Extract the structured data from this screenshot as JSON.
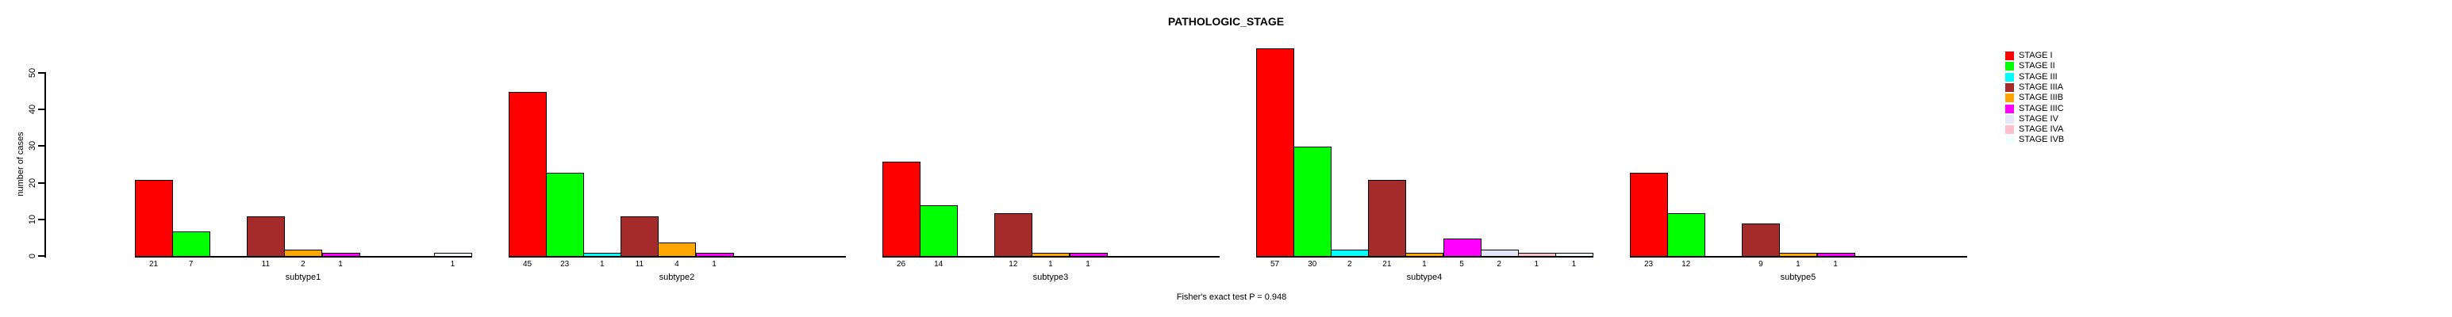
{
  "chart_data": {
    "type": "bar",
    "title": "PATHOLOGIC_STAGE",
    "ylabel": "number of cases",
    "annotation": "Fisher's exact test P = 0.948",
    "ylim": [
      0,
      50
    ],
    "yticks": [
      0,
      10,
      20,
      30,
      40,
      50
    ],
    "grid": false,
    "legend_position": "right-outside",
    "groups": [
      "subtype1",
      "subtype2",
      "subtype3",
      "subtype4",
      "subtype5"
    ],
    "series": [
      {
        "name": "STAGE I",
        "color": "#FF0000",
        "values": [
          21,
          45,
          26,
          57,
          23
        ]
      },
      {
        "name": "STAGE II",
        "color": "#00FF00",
        "values": [
          7,
          23,
          14,
          30,
          12
        ]
      },
      {
        "name": "STAGE III",
        "color": "#00FFFF",
        "values": [
          0,
          1,
          0,
          2,
          0
        ]
      },
      {
        "name": "STAGE IIIA",
        "color": "#A52A2A",
        "values": [
          11,
          11,
          12,
          21,
          9
        ]
      },
      {
        "name": "STAGE IIIB",
        "color": "#FFA500",
        "values": [
          2,
          4,
          1,
          1,
          1
        ]
      },
      {
        "name": "STAGE IIIC",
        "color": "#FF00FF",
        "values": [
          1,
          1,
          1,
          5,
          1
        ]
      },
      {
        "name": "STAGE IV",
        "color": "#E6E6FA",
        "values": [
          0,
          0,
          0,
          2,
          0
        ]
      },
      {
        "name": "STAGE IVA",
        "color": "#FFC0CB",
        "values": [
          0,
          0,
          0,
          1,
          0
        ]
      },
      {
        "name": "STAGE IVB",
        "color": "#F0FFFF",
        "values": [
          1,
          0,
          0,
          1,
          0
        ]
      }
    ]
  },
  "colors": {
    "background": "#FFFFFF",
    "axis": "#000000",
    "text": "#000000"
  }
}
